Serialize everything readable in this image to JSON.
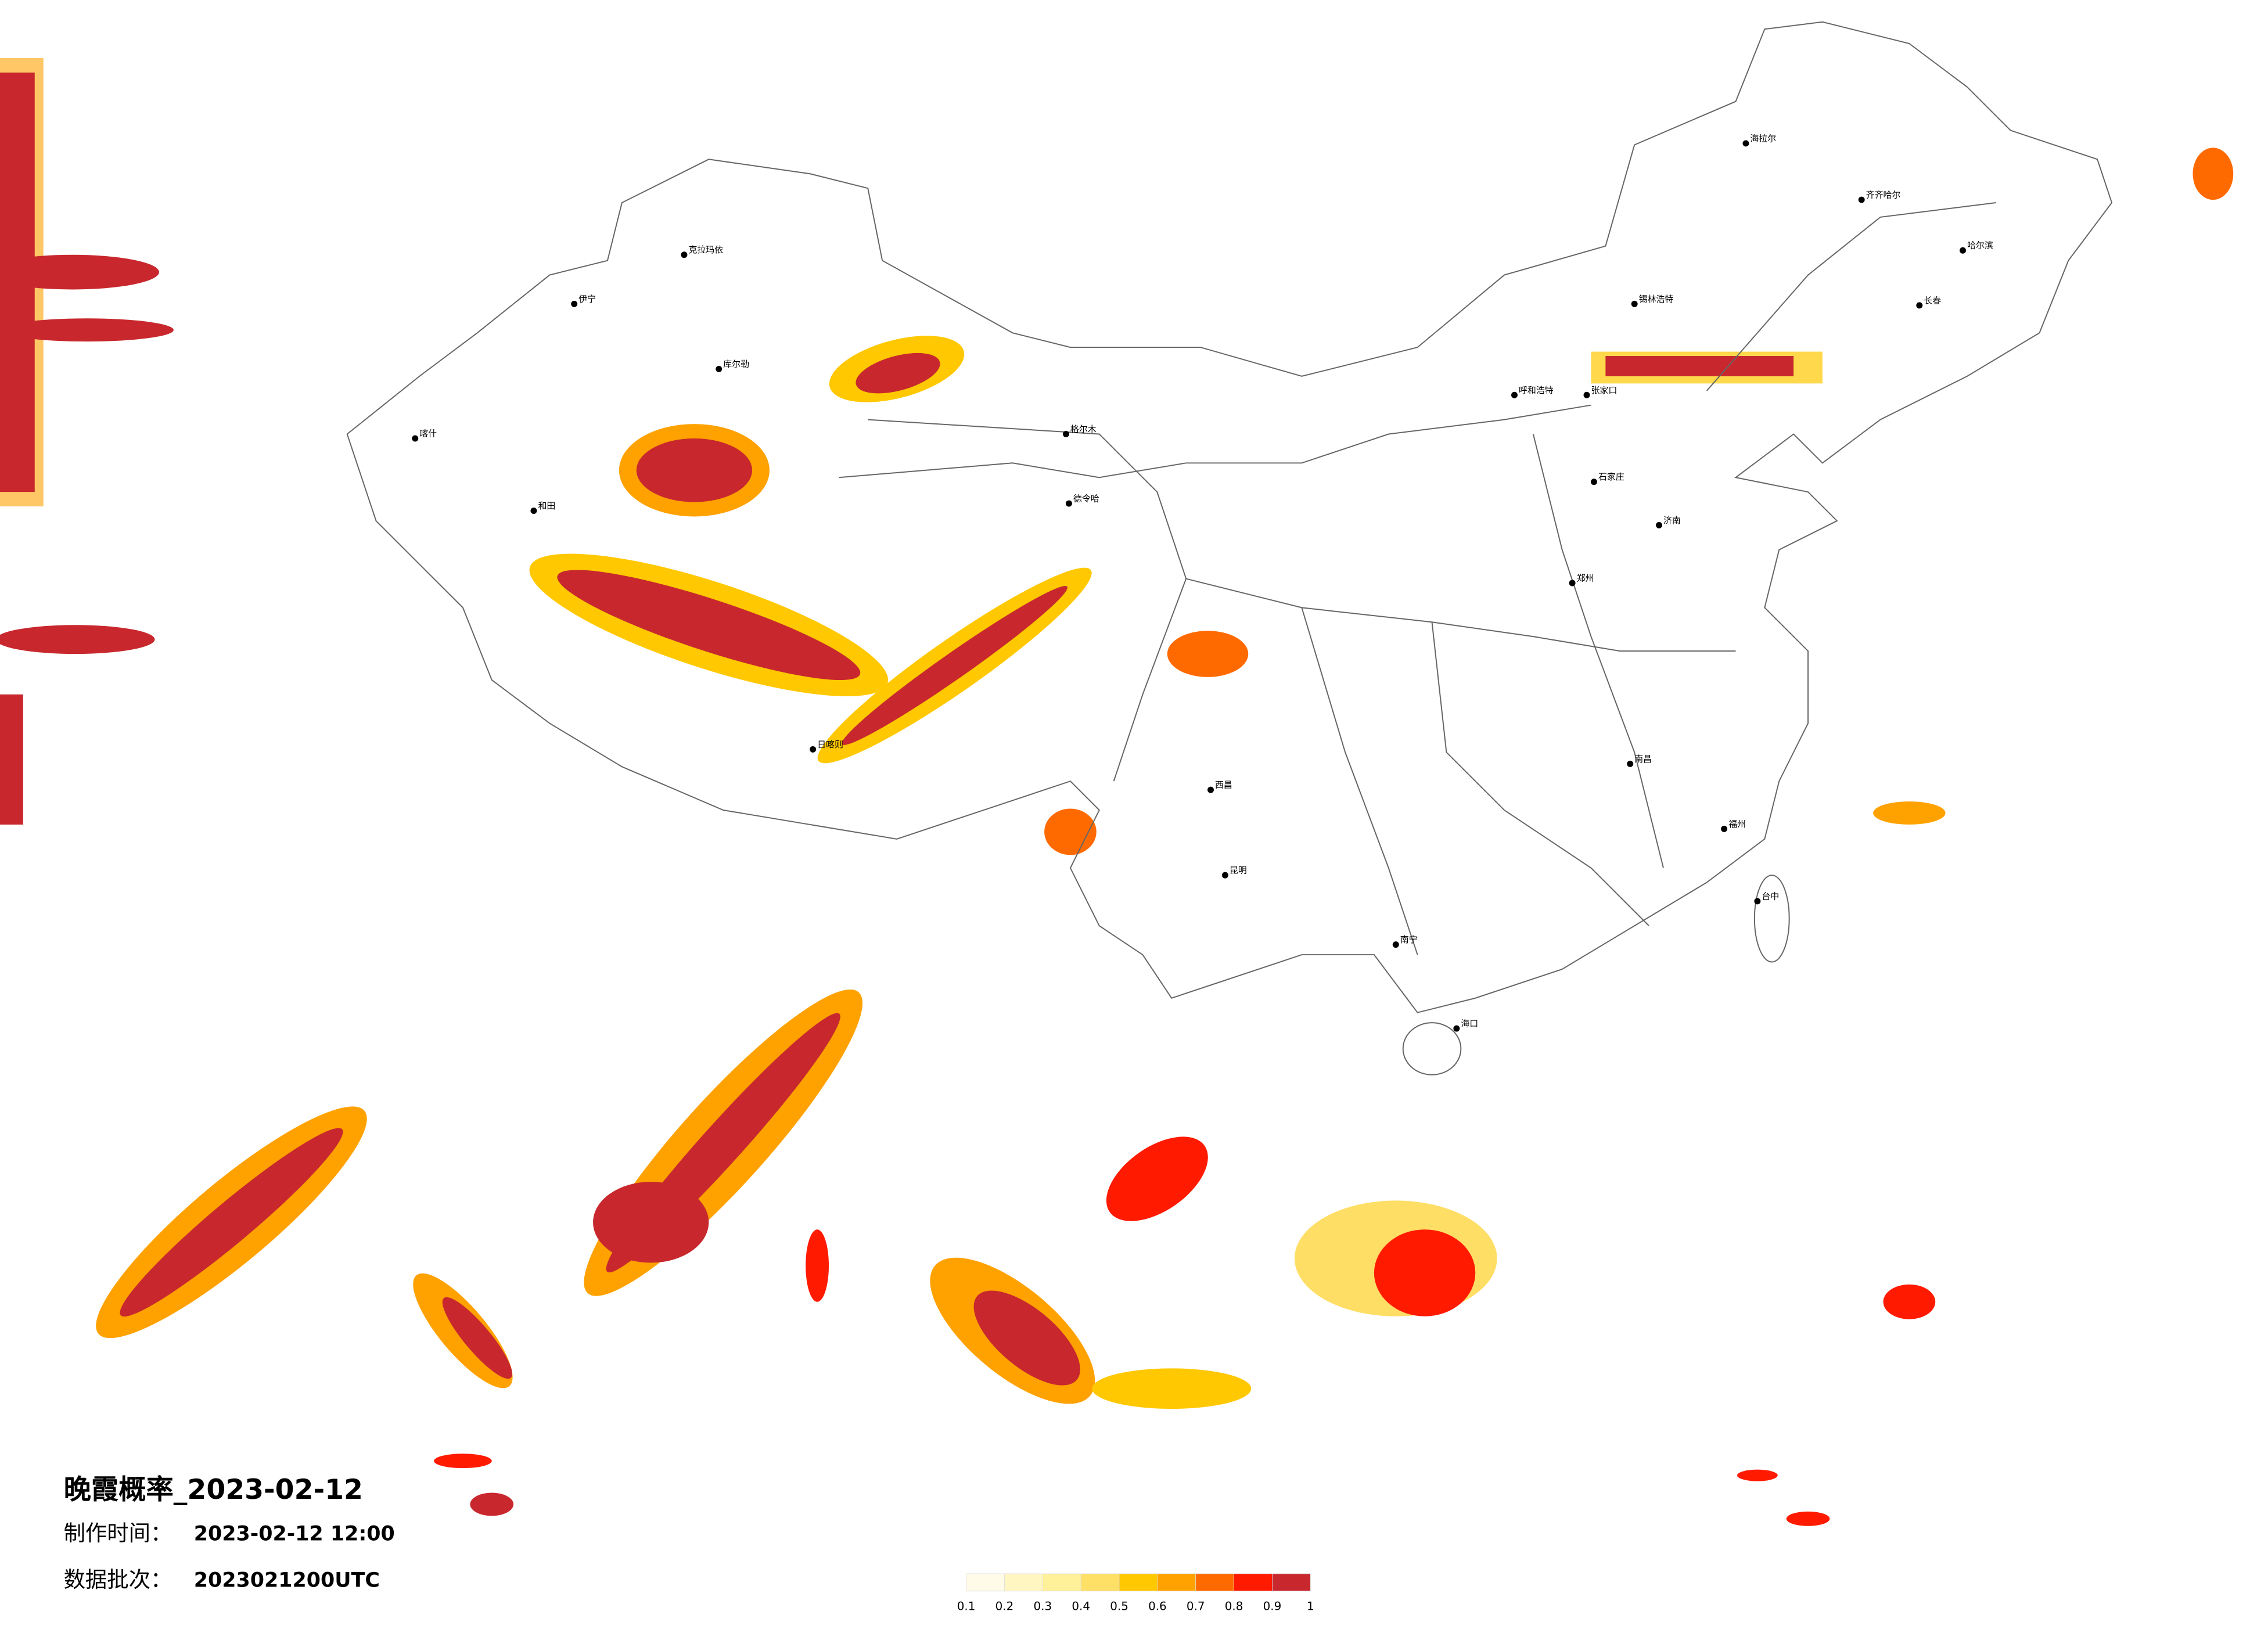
{
  "title": "晚霞概率_2023-02-12",
  "info": [
    {
      "label": "制作时间：",
      "value": "2023-02-12 12:00"
    },
    {
      "label": "数据批次：",
      "value": "2023021200UTC"
    }
  ],
  "legend": {
    "colors": [
      "#fffbe8",
      "#fff6c2",
      "#fff09a",
      "#ffe066",
      "#ffc800",
      "#ffa200",
      "#ff6a00",
      "#ff1a00",
      "#c8282d"
    ],
    "ticks": [
      0.1,
      0.2,
      0.3,
      0.4,
      0.5,
      0.6,
      0.7,
      0.8,
      0.9,
      1
    ]
  },
  "cities": [
    "喀什",
    "伊宁",
    "克拉玛依",
    "库尔勒",
    "和田",
    "日喀则",
    "格尔木",
    "德令哈",
    "呼和浩特",
    "海拉尔",
    "齐齐哈尔",
    "哈尔滨",
    "长春",
    "锡林浩特",
    "张家口",
    "石家庄",
    "济南",
    "郑州",
    "南昌",
    "福州",
    "南宁",
    "昆明",
    "海口",
    "台中",
    "西昌"
  ]
}
